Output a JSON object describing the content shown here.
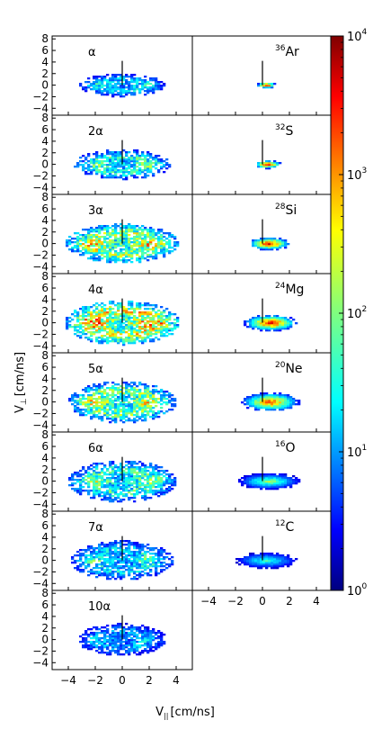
{
  "chart_data": {
    "type": "heatmap",
    "xlabel": "V",
    "xlabel_sub": "||",
    "xlabel_unit": "[cm/ns]",
    "ylabel": "V",
    "ylabel_sub": "⊥",
    "ylabel_unit": "[cm/ns]",
    "xlim": [
      -5.2,
      5.2
    ],
    "ylim": [
      -5.2,
      8.5
    ],
    "xticks": [
      "−4",
      "−2",
      "0",
      "2",
      "4"
    ],
    "yticks": [
      "8",
      "6",
      "4",
      "2",
      "0",
      "−2",
      "−4"
    ],
    "colorbar": {
      "scale": "log",
      "range": [
        1,
        10000
      ],
      "ticks": [
        {
          "base": "10",
          "exp": "0",
          "value": 1
        },
        {
          "base": "10",
          "exp": "1",
          "value": 10
        },
        {
          "base": "10",
          "exp": "2",
          "value": 100
        },
        {
          "base": "10",
          "exp": "3",
          "value": 1000
        },
        {
          "base": "10",
          "exp": "4",
          "value": 10000
        }
      ]
    },
    "left_panels": [
      {
        "label": "α",
        "spread_x": 3.2,
        "spread_y": 2.0,
        "intensity": 0.45
      },
      {
        "label": "2α",
        "spread_x": 3.6,
        "spread_y": 2.6,
        "intensity": 0.55
      },
      {
        "label": "3α",
        "spread_x": 4.2,
        "spread_y": 3.4,
        "intensity": 0.75
      },
      {
        "label": "4α",
        "spread_x": 4.3,
        "spread_y": 3.8,
        "intensity": 0.85
      },
      {
        "label": "5α",
        "spread_x": 4.0,
        "spread_y": 3.6,
        "intensity": 0.7
      },
      {
        "label": "6α",
        "spread_x": 4.0,
        "spread_y": 3.6,
        "intensity": 0.6
      },
      {
        "label": "7α",
        "spread_x": 3.8,
        "spread_y": 3.4,
        "intensity": 0.5
      },
      {
        "label": "10α",
        "spread_x": 3.3,
        "spread_y": 2.8,
        "intensity": 0.4
      }
    ],
    "right_panels": [
      {
        "mass": "36",
        "element": "Ar",
        "center_x": 0.3,
        "spread_x": 0.7,
        "spread_y": 0.5,
        "intensity": 1.0
      },
      {
        "mass": "32",
        "element": "S",
        "center_x": 0.4,
        "spread_x": 1.0,
        "spread_y": 0.7,
        "intensity": 0.95
      },
      {
        "mass": "28",
        "element": "Si",
        "center_x": 0.5,
        "spread_x": 1.6,
        "spread_y": 1.1,
        "intensity": 0.95
      },
      {
        "mass": "24",
        "element": "Mg",
        "center_x": 0.6,
        "spread_x": 2.0,
        "spread_y": 1.4,
        "intensity": 0.95
      },
      {
        "mass": "20",
        "element": "Ne",
        "center_x": 0.6,
        "spread_x": 2.2,
        "spread_y": 1.6,
        "intensity": 0.85
      },
      {
        "mass": "16",
        "element": "O",
        "center_x": 0.5,
        "spread_x": 2.4,
        "spread_y": 1.4,
        "intensity": 0.55
      },
      {
        "mass": "12",
        "element": "C",
        "center_x": 0.3,
        "spread_x": 2.4,
        "spread_y": 1.4,
        "intensity": 0.45
      }
    ]
  }
}
